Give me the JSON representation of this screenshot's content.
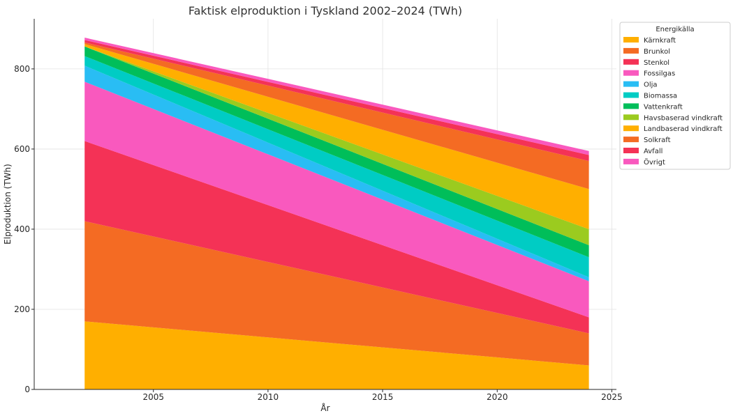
{
  "chart_data": {
    "type": "area",
    "stacked": true,
    "title": "Faktisk elproduktion i Tyskland 2002–2024 (TWh)",
    "xlabel": "År",
    "ylabel": "Elproduktion (TWh)",
    "xlim": [
      1999.8,
      2025.2
    ],
    "ylim": [
      0,
      925
    ],
    "x_ticks": [
      2005,
      2010,
      2015,
      2020,
      2025
    ],
    "y_ticks": [
      0,
      200,
      400,
      600,
      800
    ],
    "grid": true,
    "legend_title": "Energikälla",
    "legend_position": "top-right outside",
    "x": [
      2002,
      2024
    ],
    "series": [
      {
        "name": "Kärnkraft",
        "color": "#FFAF00",
        "values": [
          170,
          60
        ]
      },
      {
        "name": "Brunkol",
        "color": "#F46B23",
        "values": [
          250,
          80
        ]
      },
      {
        "name": "Stenkol",
        "color": "#F43256",
        "values": [
          200,
          40
        ]
      },
      {
        "name": "Fossilgas",
        "color": "#F959BE",
        "values": [
          148,
          90
        ]
      },
      {
        "name": "Olja",
        "color": "#29BDF4",
        "values": [
          40,
          10
        ]
      },
      {
        "name": "Biomassa",
        "color": "#00CCC4",
        "values": [
          24,
          50
        ]
      },
      {
        "name": "Vattenkraft",
        "color": "#00BE5A",
        "values": [
          24,
          30
        ]
      },
      {
        "name": "Havsbaserad vindkraft",
        "color": "#9BCB1F",
        "values": [
          0,
          40
        ]
      },
      {
        "name": "Landbaserad vindkraft",
        "color": "#FFAF00",
        "values": [
          6,
          100
        ]
      },
      {
        "name": "Solkraft",
        "color": "#F46B23",
        "values": [
          4,
          70
        ]
      },
      {
        "name": "Avfall",
        "color": "#F43256",
        "values": [
          6,
          15
        ]
      },
      {
        "name": "Övrigt",
        "color": "#F959BE",
        "values": [
          6,
          10
        ]
      }
    ]
  }
}
